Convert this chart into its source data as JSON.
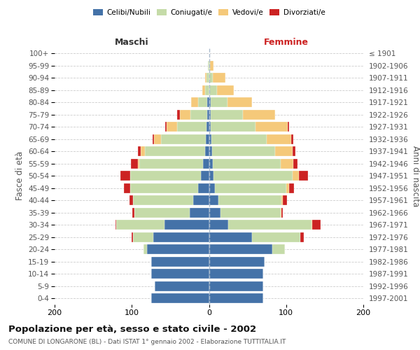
{
  "age_groups": [
    "0-4",
    "5-9",
    "10-14",
    "15-19",
    "20-24",
    "25-29",
    "30-34",
    "35-39",
    "40-44",
    "45-49",
    "50-54",
    "55-59",
    "60-64",
    "65-69",
    "70-74",
    "75-79",
    "80-84",
    "85-89",
    "90-94",
    "95-99",
    "100+"
  ],
  "birth_years": [
    "1997-2001",
    "1992-1996",
    "1987-1991",
    "1982-1986",
    "1977-1981",
    "1972-1976",
    "1967-1971",
    "1962-1966",
    "1957-1961",
    "1952-1956",
    "1947-1951",
    "1942-1946",
    "1937-1941",
    "1932-1936",
    "1927-1931",
    "1922-1926",
    "1917-1921",
    "1912-1916",
    "1907-1911",
    "1902-1906",
    "≤ 1901"
  ],
  "male": {
    "celibe": [
      75,
      70,
      75,
      75,
      80,
      72,
      58,
      25,
      20,
      14,
      10,
      8,
      5,
      4,
      3,
      2,
      2,
      0,
      0,
      0,
      0
    ],
    "coniugato": [
      0,
      0,
      0,
      0,
      5,
      26,
      62,
      72,
      78,
      88,
      92,
      82,
      78,
      58,
      38,
      22,
      12,
      5,
      3,
      1,
      0
    ],
    "vedovo": [
      0,
      0,
      0,
      0,
      0,
      0,
      0,
      0,
      0,
      0,
      0,
      2,
      5,
      9,
      14,
      14,
      9,
      4,
      2,
      0,
      0
    ],
    "divorziato": [
      0,
      0,
      0,
      0,
      0,
      2,
      1,
      2,
      5,
      8,
      13,
      9,
      4,
      2,
      2,
      3,
      0,
      0,
      0,
      0,
      0
    ]
  },
  "female": {
    "nubile": [
      70,
      70,
      70,
      72,
      82,
      56,
      25,
      15,
      12,
      8,
      6,
      5,
      4,
      3,
      2,
      2,
      2,
      0,
      0,
      0,
      0
    ],
    "coniugata": [
      0,
      0,
      0,
      0,
      16,
      62,
      108,
      78,
      82,
      92,
      102,
      88,
      82,
      72,
      58,
      42,
      22,
      10,
      5,
      1,
      0
    ],
    "vedova": [
      0,
      0,
      0,
      0,
      0,
      0,
      1,
      1,
      2,
      4,
      9,
      16,
      22,
      32,
      42,
      42,
      32,
      22,
      16,
      5,
      0
    ],
    "divorziata": [
      0,
      0,
      0,
      0,
      0,
      5,
      11,
      2,
      5,
      6,
      11,
      6,
      4,
      2,
      2,
      0,
      0,
      0,
      0,
      0,
      0
    ]
  },
  "colors": {
    "celibe_nubile": "#4472a8",
    "coniugato_a": "#c5dba8",
    "vedovo_a": "#f5c97a",
    "divorziato_a": "#cc2222"
  },
  "xlim": 200,
  "title": "Popolazione per età, sesso e stato civile - 2002",
  "subtitle": "COMUNE DI LONGARONE (BL) - Dati ISTAT 1° gennaio 2002 - Elaborazione TUTTITALIA.IT",
  "ylabel_left": "Fasce di età",
  "ylabel_right": "Anni di nascita",
  "xlabel_left": "Maschi",
  "xlabel_right": "Femmine",
  "background_color": "#ffffff",
  "grid_color": "#cccccc"
}
